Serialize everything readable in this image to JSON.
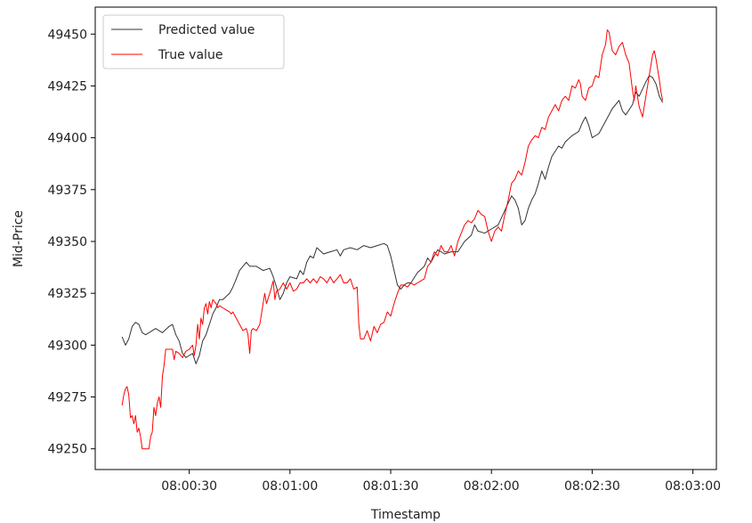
{
  "chart_data": {
    "type": "line",
    "title": "",
    "xlabel": "Timestamp",
    "ylabel": "Mid-Price",
    "x_unit": "seconds",
    "x_ticks": [
      {
        "value": 30,
        "label": "08:00:30"
      },
      {
        "value": 60,
        "label": "08:01:00"
      },
      {
        "value": 90,
        "label": "08:01:30"
      },
      {
        "value": 120,
        "label": "08:02:00"
      },
      {
        "value": 150,
        "label": "08:02:30"
      },
      {
        "value": 180,
        "label": "08:03:00"
      }
    ],
    "y_ticks": [
      49250,
      49275,
      49300,
      49325,
      49350,
      49375,
      49400,
      49425,
      49450
    ],
    "xlim": [
      2,
      187
    ],
    "ylim": [
      49240,
      49463
    ],
    "grid": false,
    "legend_position": "top-left",
    "series": [
      {
        "name": "Predicted value",
        "color": "#333333",
        "points": [
          [
            10,
            49304
          ],
          [
            11,
            49300
          ],
          [
            12,
            49303
          ],
          [
            13,
            49309
          ],
          [
            14,
            49311
          ],
          [
            15,
            49310
          ],
          [
            16,
            49306
          ],
          [
            17,
            49305
          ],
          [
            18,
            49306
          ],
          [
            20,
            49308
          ],
          [
            22,
            49306
          ],
          [
            24,
            49309
          ],
          [
            25,
            49310
          ],
          [
            26,
            49305
          ],
          [
            27,
            49302
          ],
          [
            28,
            49296
          ],
          [
            29,
            49294
          ],
          [
            30,
            49295
          ],
          [
            31,
            49296
          ],
          [
            32,
            49291
          ],
          [
            33,
            49295
          ],
          [
            34,
            49302
          ],
          [
            35,
            49305
          ],
          [
            36,
            49310
          ],
          [
            37,
            49315
          ],
          [
            38,
            49318
          ],
          [
            39,
            49322
          ],
          [
            40,
            49322
          ],
          [
            42,
            49325
          ],
          [
            43,
            49328
          ],
          [
            44,
            49332
          ],
          [
            45,
            49336
          ],
          [
            46,
            49338
          ],
          [
            47,
            49340
          ],
          [
            48,
            49338
          ],
          [
            50,
            49338
          ],
          [
            52,
            49336
          ],
          [
            54,
            49337
          ],
          [
            55,
            49333
          ],
          [
            56,
            49328
          ],
          [
            57,
            49322
          ],
          [
            58,
            49325
          ],
          [
            59,
            49330
          ],
          [
            60,
            49333
          ],
          [
            62,
            49332
          ],
          [
            63,
            49336
          ],
          [
            64,
            49334
          ],
          [
            65,
            49340
          ],
          [
            66,
            49343
          ],
          [
            67,
            49342
          ],
          [
            68,
            49347
          ],
          [
            70,
            49344
          ],
          [
            72,
            49345
          ],
          [
            74,
            49346
          ],
          [
            75,
            49343
          ],
          [
            76,
            49346
          ],
          [
            78,
            49347
          ],
          [
            80,
            49346
          ],
          [
            82,
            49348
          ],
          [
            84,
            49347
          ],
          [
            86,
            49348
          ],
          [
            88,
            49349
          ],
          [
            89,
            49348
          ],
          [
            90,
            49343
          ],
          [
            91,
            49336
          ],
          [
            92,
            49329
          ],
          [
            93,
            49327
          ],
          [
            94,
            49329
          ],
          [
            95,
            49330
          ],
          [
            96,
            49330
          ],
          [
            98,
            49335
          ],
          [
            100,
            49338
          ],
          [
            101,
            49342
          ],
          [
            102,
            49340
          ],
          [
            104,
            49346
          ],
          [
            106,
            49344
          ],
          [
            108,
            49345
          ],
          [
            110,
            49345
          ],
          [
            112,
            49350
          ],
          [
            114,
            49353
          ],
          [
            115,
            49358
          ],
          [
            116,
            49355
          ],
          [
            118,
            49354
          ],
          [
            120,
            49356
          ],
          [
            122,
            49358
          ],
          [
            124,
            49365
          ],
          [
            126,
            49372
          ],
          [
            127,
            49370
          ],
          [
            128,
            49366
          ],
          [
            129,
            49358
          ],
          [
            130,
            49360
          ],
          [
            131,
            49366
          ],
          [
            132,
            49370
          ],
          [
            133,
            49373
          ],
          [
            134,
            49378
          ],
          [
            135,
            49384
          ],
          [
            136,
            49380
          ],
          [
            137,
            49386
          ],
          [
            138,
            49391
          ],
          [
            140,
            49396
          ],
          [
            141,
            49395
          ],
          [
            142,
            49398
          ],
          [
            144,
            49401
          ],
          [
            146,
            49403
          ],
          [
            147,
            49407
          ],
          [
            148,
            49410
          ],
          [
            149,
            49406
          ],
          [
            150,
            49400
          ],
          [
            152,
            49402
          ],
          [
            154,
            49408
          ],
          [
            156,
            49414
          ],
          [
            158,
            49418
          ],
          [
            159,
            49413
          ],
          [
            160,
            49411
          ],
          [
            162,
            49416
          ],
          [
            163,
            49422
          ],
          [
            164,
            49420
          ],
          [
            166,
            49427
          ],
          [
            167,
            49430
          ],
          [
            168,
            49429
          ],
          [
            169,
            49426
          ],
          [
            170,
            49420
          ],
          [
            171,
            49417
          ]
        ]
      },
      {
        "name": "True value",
        "color": "#ff0000",
        "points": [
          [
            10,
            49271
          ],
          [
            10.5,
            49276
          ],
          [
            11,
            49279
          ],
          [
            11.5,
            49280
          ],
          [
            12,
            49276
          ],
          [
            12.5,
            49265
          ],
          [
            13,
            49266
          ],
          [
            13.5,
            49262
          ],
          [
            14,
            49266
          ],
          [
            14.5,
            49258
          ],
          [
            15,
            49260
          ],
          [
            15.5,
            49256
          ],
          [
            16,
            49250
          ],
          [
            17,
            49250
          ],
          [
            18,
            49250
          ],
          [
            18.5,
            49256
          ],
          [
            19,
            49258
          ],
          [
            19.5,
            49270
          ],
          [
            20,
            49266
          ],
          [
            20.5,
            49272
          ],
          [
            21,
            49275
          ],
          [
            21.5,
            49270
          ],
          [
            22,
            49285
          ],
          [
            22.5,
            49290
          ],
          [
            23,
            49298
          ],
          [
            24,
            49298
          ],
          [
            25,
            49298
          ],
          [
            25.5,
            49293
          ],
          [
            26,
            49297
          ],
          [
            27,
            49296
          ],
          [
            28,
            49294
          ],
          [
            29,
            49297
          ],
          [
            30,
            49298
          ],
          [
            31,
            49300
          ],
          [
            31.5,
            49295
          ],
          [
            32,
            49300
          ],
          [
            32.5,
            49310
          ],
          [
            33,
            49303
          ],
          [
            33.5,
            49313
          ],
          [
            34,
            49310
          ],
          [
            34.5,
            49318
          ],
          [
            35,
            49320
          ],
          [
            35.5,
            49315
          ],
          [
            36,
            49321
          ],
          [
            36.5,
            49318
          ],
          [
            37,
            49322
          ],
          [
            38,
            49320
          ],
          [
            38.5,
            49318
          ],
          [
            39,
            49319
          ],
          [
            40,
            49318
          ],
          [
            41,
            49317
          ],
          [
            42,
            49316
          ],
          [
            42.5,
            49315
          ],
          [
            43,
            49316
          ],
          [
            44,
            49313
          ],
          [
            45,
            49310
          ],
          [
            46,
            49307
          ],
          [
            47,
            49308
          ],
          [
            47.5,
            49305
          ],
          [
            48,
            49296
          ],
          [
            48.5,
            49307
          ],
          [
            49,
            49308
          ],
          [
            50,
            49307
          ],
          [
            51,
            49310
          ],
          [
            51.5,
            49315
          ],
          [
            52,
            49320
          ],
          [
            52.5,
            49325
          ],
          [
            53,
            49320
          ],
          [
            54,
            49325
          ],
          [
            55,
            49331
          ],
          [
            55.5,
            49322
          ],
          [
            56,
            49326
          ],
          [
            57,
            49327
          ],
          [
            58,
            49330
          ],
          [
            59,
            49327
          ],
          [
            60,
            49330
          ],
          [
            61,
            49326
          ],
          [
            62,
            49327
          ],
          [
            63,
            49330
          ],
          [
            64,
            49330
          ],
          [
            65,
            49332
          ],
          [
            66,
            49330
          ],
          [
            67,
            49332
          ],
          [
            68,
            49330
          ],
          [
            69,
            49333
          ],
          [
            70,
            49332
          ],
          [
            71,
            49330
          ],
          [
            72,
            49333
          ],
          [
            73,
            49330
          ],
          [
            74,
            49332
          ],
          [
            75,
            49334
          ],
          [
            76,
            49330
          ],
          [
            77,
            49330
          ],
          [
            78,
            49332
          ],
          [
            79,
            49327
          ],
          [
            80,
            49328
          ],
          [
            80.5,
            49310
          ],
          [
            81,
            49303
          ],
          [
            82,
            49303
          ],
          [
            83,
            49307
          ],
          [
            84,
            49302
          ],
          [
            85,
            49309
          ],
          [
            86,
            49306
          ],
          [
            87,
            49310
          ],
          [
            88,
            49311
          ],
          [
            89,
            49316
          ],
          [
            90,
            49314
          ],
          [
            91,
            49320
          ],
          [
            92,
            49325
          ],
          [
            93,
            49329
          ],
          [
            94,
            49329
          ],
          [
            95,
            49328
          ],
          [
            96,
            49330
          ],
          [
            97,
            49329
          ],
          [
            98,
            49330
          ],
          [
            99,
            49331
          ],
          [
            100,
            49332
          ],
          [
            101,
            49338
          ],
          [
            102,
            49340
          ],
          [
            103,
            49345
          ],
          [
            104,
            49343
          ],
          [
            105,
            49348
          ],
          [
            106,
            49345
          ],
          [
            107,
            49345
          ],
          [
            108,
            49348
          ],
          [
            109,
            49343
          ],
          [
            110,
            49350
          ],
          [
            111,
            49354
          ],
          [
            112,
            49358
          ],
          [
            113,
            49360
          ],
          [
            114,
            49359
          ],
          [
            115,
            49361
          ],
          [
            116,
            49365
          ],
          [
            117,
            49363
          ],
          [
            118,
            49362
          ],
          [
            119,
            49355
          ],
          [
            120,
            49350
          ],
          [
            121,
            49355
          ],
          [
            122,
            49357
          ],
          [
            123,
            49355
          ],
          [
            124,
            49363
          ],
          [
            125,
            49370
          ],
          [
            126,
            49378
          ],
          [
            127,
            49380
          ],
          [
            128,
            49384
          ],
          [
            129,
            49382
          ],
          [
            130,
            49388
          ],
          [
            131,
            49396
          ],
          [
            132,
            49399
          ],
          [
            133,
            49401
          ],
          [
            134,
            49400
          ],
          [
            135,
            49405
          ],
          [
            136,
            49404
          ],
          [
            137,
            49410
          ],
          [
            138,
            49413
          ],
          [
            139,
            49416
          ],
          [
            140,
            49413
          ],
          [
            141,
            49418
          ],
          [
            142,
            49420
          ],
          [
            143,
            49418
          ],
          [
            144,
            49425
          ],
          [
            145,
            49424
          ],
          [
            146,
            49428
          ],
          [
            146.5,
            49426
          ],
          [
            147,
            49420
          ],
          [
            148,
            49418
          ],
          [
            149,
            49424
          ],
          [
            150,
            49425
          ],
          [
            151,
            49430
          ],
          [
            152,
            49429
          ],
          [
            153,
            49440
          ],
          [
            154,
            49445
          ],
          [
            154.5,
            49452
          ],
          [
            155,
            49451
          ],
          [
            156,
            49442
          ],
          [
            157,
            49440
          ],
          [
            158,
            49444
          ],
          [
            159,
            49446
          ],
          [
            160,
            49440
          ],
          [
            161,
            49436
          ],
          [
            162,
            49423
          ],
          [
            162.5,
            49418
          ],
          [
            163,
            49425
          ],
          [
            164,
            49415
          ],
          [
            165,
            49410
          ],
          [
            166,
            49420
          ],
          [
            167,
            49430
          ],
          [
            168,
            49440
          ],
          [
            168.5,
            49442
          ],
          [
            169,
            49438
          ],
          [
            170,
            49428
          ],
          [
            170.5,
            49422
          ],
          [
            171,
            49418
          ]
        ]
      }
    ]
  }
}
